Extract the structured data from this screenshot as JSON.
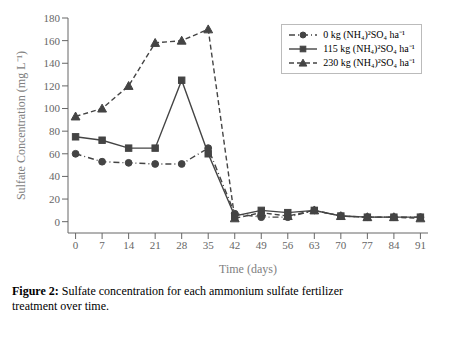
{
  "chart_data": {
    "type": "line",
    "x_label": "Time (days)",
    "y_label": "Sulfate Concentration (mg L⁻¹)",
    "x": [
      0,
      7,
      14,
      21,
      28,
      35,
      42,
      49,
      56,
      63,
      70,
      77,
      84,
      91
    ],
    "series": [
      {
        "name": "0 kg (NH₄)²SO₄ ha⁻¹",
        "color": "#444444",
        "marker": "circle",
        "line_style": "dashdot",
        "values": [
          60,
          53,
          52,
          51,
          51,
          65,
          7,
          4,
          4,
          10,
          5,
          4,
          4,
          4
        ]
      },
      {
        "name": "115 kg (NH₄)²SO₄ ha⁻¹",
        "color": "#444444",
        "marker": "square",
        "line_style": "solid",
        "values": [
          75,
          72,
          65,
          65,
          125,
          60,
          5,
          10,
          8,
          10,
          5,
          4,
          4,
          4
        ]
      },
      {
        "name": "230 kg (NH₄)²SO₄ ha⁻¹",
        "color": "#444444",
        "marker": "triangle",
        "line_style": "dashed",
        "values": [
          93,
          100,
          120,
          158,
          160,
          170,
          3,
          8,
          5,
          10,
          5,
          4,
          4,
          3
        ]
      }
    ],
    "xlim": [
      -2,
      93
    ],
    "xticks": [
      0,
      7,
      14,
      21,
      28,
      35,
      42,
      49,
      56,
      63,
      70,
      77,
      84,
      91
    ],
    "ylim": [
      -10,
      180
    ],
    "yticks": [
      0,
      20,
      40,
      60,
      80,
      100,
      120,
      140,
      160,
      180
    ],
    "grid": false,
    "legend": "upper right",
    "annotations": [
      "Figure 2:",
      "Sulfate concentration for each ammonium sulfate fertilizer\ntreatment over time."
    ]
  }
}
